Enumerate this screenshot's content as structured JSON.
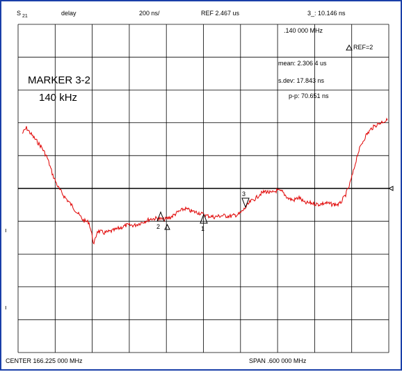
{
  "header": {
    "param": "S",
    "param_sub": "21",
    "format": "delay",
    "scale": "200 ns/",
    "reference": "REF 2.467 us",
    "marker_readout": "3_: 10.146 ns"
  },
  "marker_info": {
    "freq_offset": ".140 000 MHz",
    "ref_label": "REF=2"
  },
  "statistics": {
    "mean": "mean: 2.306 4 us",
    "sdev": "s.dev: 17.843 ns",
    "pp": "p-p: 70.651 ns"
  },
  "marker_panel": {
    "title": "MARKER 3-2",
    "value": "140 kHz"
  },
  "markers": {
    "m1": "1",
    "m2": "2",
    "m3": "3"
  },
  "footer": {
    "center": "CENTER  166.225 000 MHz",
    "span": "SPAN  .600 000 MHz"
  },
  "side_ticks": {
    "tick_a": "ı",
    "tick_b": "ı"
  },
  "colors": {
    "trace": "#e00000",
    "grid": "#000000",
    "border": "#1a3fa8"
  }
}
